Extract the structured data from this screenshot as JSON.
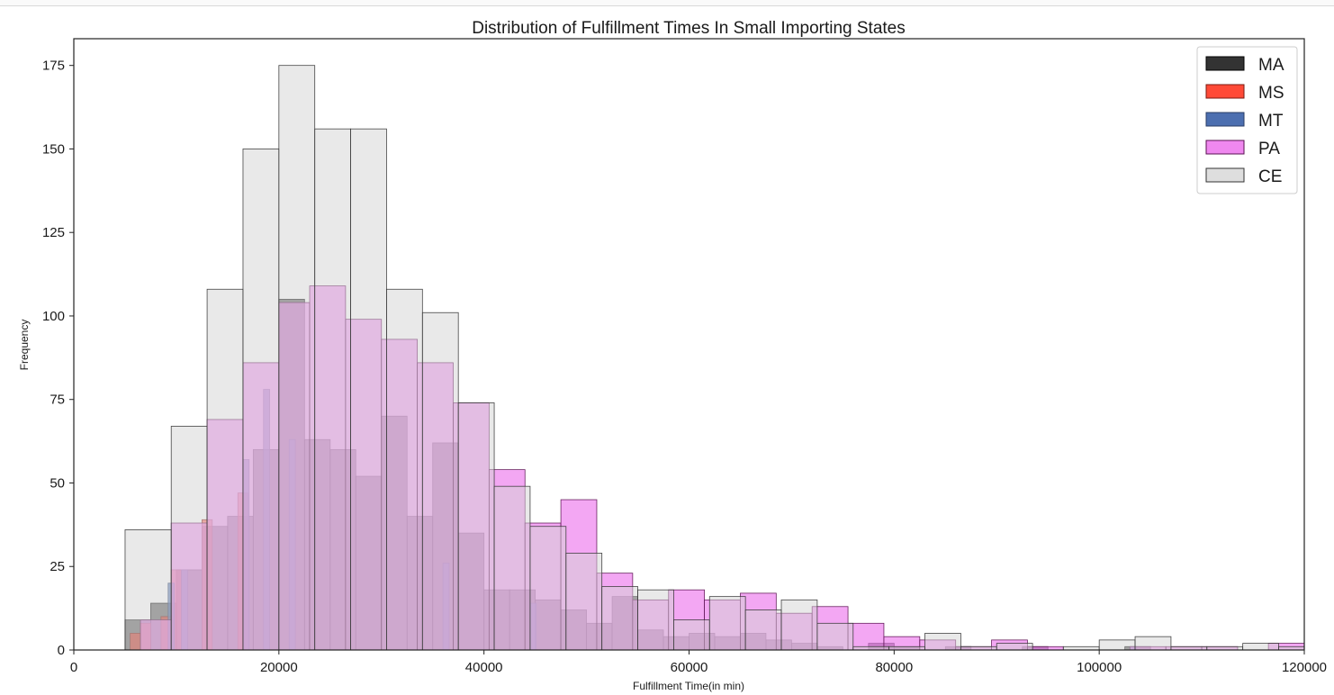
{
  "chart_data": {
    "type": "histogram",
    "title": "Distribution of Fulfillment Times In Small Importing States",
    "xlabel": "Fulfillment Time(in min)",
    "ylabel": "Frequency",
    "xlim": [
      0,
      120000
    ],
    "ylim": [
      0,
      183
    ],
    "xticks": [
      0,
      20000,
      40000,
      60000,
      80000,
      100000,
      120000
    ],
    "yticks": [
      0,
      25,
      50,
      75,
      100,
      125,
      150,
      175
    ],
    "legend_position": "top-right",
    "grid": false,
    "series": [
      {
        "name": "MA",
        "color": "#000000",
        "opacity": 0.55,
        "edge": "#000000",
        "bins": [
          [
            5000,
            7500,
            9
          ],
          [
            7500,
            10000,
            14
          ],
          [
            10000,
            12500,
            24
          ],
          [
            12500,
            15000,
            37
          ],
          [
            15000,
            17500,
            40
          ],
          [
            17500,
            20000,
            60
          ],
          [
            20000,
            22500,
            105
          ],
          [
            22500,
            25000,
            63
          ],
          [
            25000,
            27500,
            60
          ],
          [
            27500,
            30000,
            52
          ],
          [
            30000,
            32500,
            70
          ],
          [
            32500,
            35000,
            40
          ],
          [
            35000,
            37500,
            62
          ],
          [
            37500,
            40000,
            35
          ],
          [
            40000,
            42500,
            18
          ],
          [
            42500,
            45000,
            18
          ],
          [
            45000,
            47500,
            15
          ],
          [
            47500,
            50000,
            12
          ],
          [
            50000,
            52500,
            8
          ],
          [
            52500,
            55000,
            16
          ],
          [
            55000,
            57500,
            6
          ],
          [
            57500,
            60000,
            4
          ],
          [
            60000,
            62500,
            5
          ],
          [
            62500,
            65000,
            4
          ],
          [
            65000,
            67500,
            5
          ],
          [
            67500,
            70000,
            3
          ],
          [
            70000,
            72500,
            2
          ],
          [
            72500,
            75000,
            1
          ],
          [
            77500,
            80000,
            2
          ],
          [
            80000,
            82500,
            1
          ],
          [
            85000,
            87500,
            1
          ],
          [
            92500,
            95000,
            1
          ],
          [
            102500,
            105000,
            1
          ]
        ]
      },
      {
        "name": "MS",
        "color": "#ff2a14",
        "opacity": 0.6,
        "edge": "#7a1a10",
        "bins": [
          [
            5500,
            6500,
            5
          ],
          [
            6500,
            7500,
            8
          ],
          [
            8500,
            9500,
            10
          ],
          [
            9500,
            10500,
            24
          ],
          [
            12500,
            13500,
            39
          ],
          [
            16000,
            17000,
            47
          ]
        ]
      },
      {
        "name": "MT",
        "color": "#4c6fb0",
        "opacity": 0.75,
        "edge": "#2a3d66",
        "bins": [
          [
            9200,
            9800,
            20
          ],
          [
            10500,
            11100,
            24
          ],
          [
            16500,
            17100,
            57
          ],
          [
            18500,
            19100,
            78
          ],
          [
            21000,
            21600,
            63
          ],
          [
            36000,
            36600,
            26
          ],
          [
            44500,
            45100,
            14
          ],
          [
            103000,
            103600,
            1
          ]
        ]
      },
      {
        "name": "PA",
        "color": "#ee82ee",
        "opacity": 0.7,
        "edge": "#5a1050",
        "bins": [
          [
            6500,
            9500,
            9
          ],
          [
            9500,
            13000,
            38
          ],
          [
            13000,
            16500,
            69
          ],
          [
            16500,
            20000,
            86
          ],
          [
            20000,
            23000,
            104
          ],
          [
            23000,
            26500,
            109
          ],
          [
            26500,
            30000,
            99
          ],
          [
            30000,
            33500,
            93
          ],
          [
            33500,
            37000,
            86
          ],
          [
            37000,
            40500,
            74
          ],
          [
            40500,
            44000,
            54
          ],
          [
            44000,
            47500,
            38
          ],
          [
            47500,
            51000,
            45
          ],
          [
            51000,
            54500,
            23
          ],
          [
            54500,
            58000,
            15
          ],
          [
            58000,
            61500,
            18
          ],
          [
            61500,
            65000,
            15
          ],
          [
            65000,
            68500,
            17
          ],
          [
            68500,
            72000,
            11
          ],
          [
            72000,
            75500,
            13
          ],
          [
            75500,
            79000,
            8
          ],
          [
            79000,
            82500,
            4
          ],
          [
            82500,
            86000,
            3
          ],
          [
            86000,
            89500,
            1
          ],
          [
            89500,
            93000,
            3
          ],
          [
            93000,
            96500,
            1
          ],
          [
            103000,
            106500,
            1
          ],
          [
            106500,
            110000,
            1
          ],
          [
            110000,
            113500,
            1
          ],
          [
            116500,
            120000,
            2
          ]
        ]
      },
      {
        "name": "CE",
        "color": "#d3d3d3",
        "opacity": 0.5,
        "edge": "#333333",
        "bins": [
          [
            5000,
            9500,
            36
          ],
          [
            9500,
            13000,
            67
          ],
          [
            13000,
            16500,
            108
          ],
          [
            16500,
            20000,
            150
          ],
          [
            20000,
            23500,
            175
          ],
          [
            23500,
            27000,
            156
          ],
          [
            27000,
            30500,
            156
          ],
          [
            30500,
            34000,
            108
          ],
          [
            34000,
            37500,
            101
          ],
          [
            37500,
            41000,
            74
          ],
          [
            41000,
            44500,
            49
          ],
          [
            44500,
            48000,
            37
          ],
          [
            48000,
            51500,
            29
          ],
          [
            51500,
            55000,
            19
          ],
          [
            55000,
            58500,
            18
          ],
          [
            58500,
            62000,
            9
          ],
          [
            62000,
            65500,
            16
          ],
          [
            65500,
            69000,
            12
          ],
          [
            69000,
            72500,
            15
          ],
          [
            72500,
            76000,
            8
          ],
          [
            76000,
            79500,
            1
          ],
          [
            79500,
            83000,
            1
          ],
          [
            83000,
            86500,
            5
          ],
          [
            86500,
            90000,
            1
          ],
          [
            90000,
            93500,
            2
          ],
          [
            96500,
            100000,
            1
          ],
          [
            100000,
            103500,
            3
          ],
          [
            103500,
            107000,
            4
          ],
          [
            107000,
            110500,
            1
          ],
          [
            110500,
            114000,
            1
          ],
          [
            114000,
            117500,
            2
          ],
          [
            117500,
            120000,
            1
          ]
        ]
      }
    ]
  }
}
